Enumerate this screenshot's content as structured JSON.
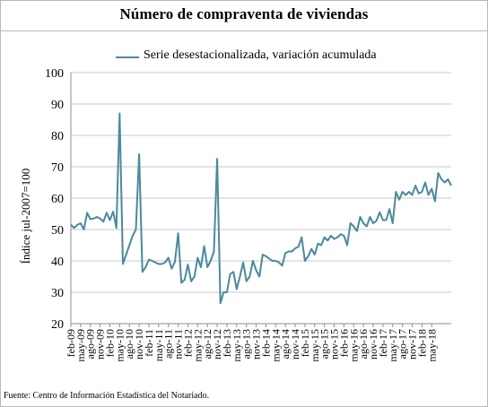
{
  "chart_data": {
    "type": "line",
    "title": "Número de compraventa de viviendas",
    "ylabel": "Índice jul-2007=100",
    "ylim": [
      20,
      100
    ],
    "yticks": [
      20,
      30,
      40,
      50,
      60,
      70,
      80,
      90,
      100
    ],
    "grid": true,
    "legend_position": "top",
    "series": [
      {
        "name": "Serie desestacionalizada, variación acumulada",
        "color": "#4a8a9c",
        "start": "feb-09",
        "values": [
          51.5,
          50.5,
          51.5,
          52,
          50,
          55.3,
          53.3,
          53.5,
          54,
          53.5,
          52.5,
          55.3,
          53,
          55.7,
          50.5,
          87,
          39,
          42,
          45,
          48,
          50,
          74,
          36.5,
          38,
          40.4,
          40,
          39.5,
          39,
          39,
          39.5,
          41,
          37.5,
          39.7,
          48.8,
          33,
          34,
          38.8,
          33.5,
          35,
          41,
          38,
          44.7,
          38,
          40,
          43,
          72.5,
          26.5,
          30,
          30,
          35.8,
          36.5,
          31,
          35,
          39.5,
          33.5,
          35,
          40,
          37,
          35,
          42,
          41.5,
          40.7,
          40,
          40,
          39.5,
          38.5,
          42.5,
          43,
          43,
          44,
          44.5,
          47.5,
          40,
          41.5,
          43.8,
          42,
          45.5,
          45,
          47.5,
          46.5,
          48,
          47,
          47.5,
          48.5,
          48,
          45,
          52,
          51,
          49.5,
          54,
          52,
          51,
          54,
          52,
          52.8,
          55.5,
          53,
          53,
          56.5,
          52,
          62,
          59.5,
          62,
          61,
          62,
          61,
          64,
          61.5,
          62,
          65,
          61,
          63,
          59,
          68,
          66,
          65,
          66,
          64
        ]
      }
    ],
    "xtick_labels": [
      "feb-09",
      "may-09",
      "ago-09",
      "nov-09",
      "feb-10",
      "may-10",
      "ago-10",
      "nov-10",
      "feb-11",
      "may-11",
      "ago-11",
      "nov-11",
      "feb-12",
      "may-12",
      "ago-12",
      "nov-12",
      "feb-13",
      "may-13",
      "ago-13",
      "nov-13",
      "feb-14",
      "may-14",
      "ago-14",
      "nov-14",
      "feb-15",
      "may-15",
      "ago-15",
      "nov-15",
      "feb-16",
      "may-16",
      "ago-16",
      "nov-16",
      "feb-17",
      "may-17",
      "ago-17",
      "nov-17",
      "feb-18",
      "may-18"
    ]
  },
  "source": "Fuente: Centro de Información Estadística del Notariado."
}
